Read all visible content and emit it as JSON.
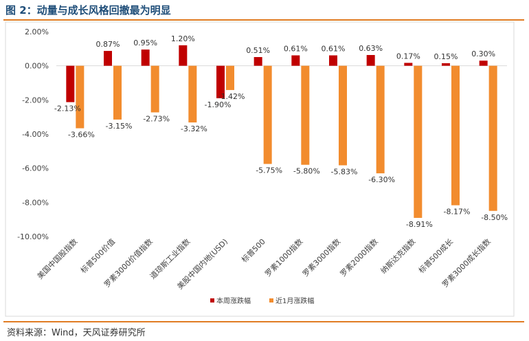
{
  "figure": {
    "title": "图 2：动量与成长风格回撤最为明显",
    "source": "资料来源：Wind，天风证券研究所"
  },
  "colors": {
    "series_week": "#c00000",
    "series_month": "#f28c2e",
    "title": "#1f4e79",
    "rule": "#e07b22"
  },
  "chart_data": {
    "type": "bar",
    "title": "",
    "xlabel": "",
    "ylabel": "",
    "ylim": [
      -10,
      2
    ],
    "yticks": [
      2,
      0,
      -2,
      -4,
      -6,
      -8,
      -10
    ],
    "ytick_labels": [
      "2.00%",
      "0.00%",
      "-2.00%",
      "-4.00%",
      "-6.00%",
      "-8.00%",
      "-10.00%"
    ],
    "grid": false,
    "legend": "bottom",
    "categories": [
      "美国中国股指数",
      "标普500价值",
      "罗素3000价值指数",
      "道琼斯工业指数",
      "美股中国内地(USD)",
      "标普500",
      "罗素1000指数",
      "罗素3000指数",
      "罗素2000指数",
      "纳斯达克指数",
      "标普500成长",
      "罗素3000成长指数"
    ],
    "series": [
      {
        "name": "本周涨跌幅",
        "values": [
          -2.13,
          0.87,
          0.95,
          1.2,
          -1.9,
          0.51,
          0.61,
          0.61,
          0.63,
          0.17,
          0.15,
          0.3
        ],
        "labels": [
          "-2.13%",
          "0.87%",
          "0.95%",
          "1.20%",
          "-1.90%",
          "0.51%",
          "0.61%",
          "0.61%",
          "0.63%",
          "0.17%",
          "0.15%",
          "0.30%"
        ]
      },
      {
        "name": "近1月涨跌幅",
        "values": [
          -3.66,
          -3.15,
          -2.73,
          -3.32,
          -1.42,
          -5.75,
          -5.8,
          -5.83,
          -6.3,
          -8.91,
          -8.17,
          -8.5
        ],
        "labels": [
          "-3.66%",
          "-3.15%",
          "-2.73%",
          "-3.32%",
          "-1.42%",
          "-5.75%",
          "-5.80%",
          "-5.83%",
          "-6.30%",
          "-8.91%",
          "-8.17%",
          "-8.50%"
        ]
      }
    ]
  }
}
